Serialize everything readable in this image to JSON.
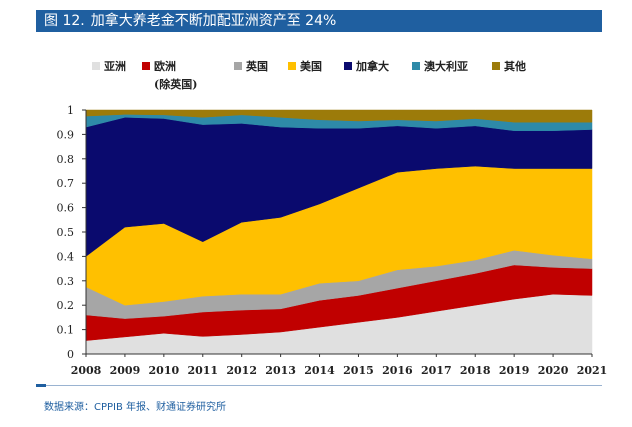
{
  "header": {
    "figure_number": "图 12.",
    "title": "加拿大养老金不断加配亚洲资产至 24%"
  },
  "chart_data": {
    "type": "area",
    "stacked": true,
    "categories": [
      "2008",
      "2009",
      "2010",
      "2011",
      "2012",
      "2013",
      "2014",
      "2015",
      "2016",
      "2017",
      "2018",
      "2019",
      "2020",
      "2021"
    ],
    "ylim": [
      0,
      1
    ],
    "yticks": [
      "0",
      "0.1",
      "0.2",
      "0.3",
      "0.4",
      "0.5",
      "0.6",
      "0.7",
      "0.8",
      "0.9",
      "1"
    ],
    "legend_position": "top",
    "series": [
      {
        "name": "亚洲",
        "color": "#e0e0e0",
        "values": [
          0.055,
          0.07,
          0.085,
          0.072,
          0.08,
          0.09,
          0.11,
          0.13,
          0.15,
          0.175,
          0.2,
          0.225,
          0.245,
          0.24
        ]
      },
      {
        "name": "欧洲(除英国)",
        "color": "#c00000",
        "values": [
          0.105,
          0.075,
          0.07,
          0.1,
          0.1,
          0.095,
          0.11,
          0.11,
          0.12,
          0.125,
          0.13,
          0.14,
          0.11,
          0.11
        ]
      },
      {
        "name": "英国",
        "color": "#a6a6a6",
        "values": [
          0.115,
          0.055,
          0.06,
          0.065,
          0.065,
          0.06,
          0.07,
          0.06,
          0.075,
          0.06,
          0.055,
          0.06,
          0.05,
          0.04
        ]
      },
      {
        "name": "美国",
        "color": "#ffc000",
        "values": [
          0.125,
          0.32,
          0.32,
          0.223,
          0.295,
          0.315,
          0.325,
          0.38,
          0.4,
          0.4,
          0.385,
          0.335,
          0.355,
          0.37
        ]
      },
      {
        "name": "加拿大",
        "color": "#0a0a6e",
        "values": [
          0.53,
          0.45,
          0.43,
          0.48,
          0.405,
          0.37,
          0.31,
          0.245,
          0.19,
          0.165,
          0.165,
          0.155,
          0.155,
          0.16
        ]
      },
      {
        "name": "澳大利亚",
        "color": "#2e8aa8",
        "values": [
          0.045,
          0.012,
          0.015,
          0.03,
          0.035,
          0.04,
          0.035,
          0.03,
          0.025,
          0.03,
          0.03,
          0.035,
          0.035,
          0.03
        ]
      },
      {
        "name": "其他",
        "color": "#9c7b0a",
        "values": [
          0.025,
          0.018,
          0.02,
          0.03,
          0.02,
          0.03,
          0.04,
          0.045,
          0.04,
          0.045,
          0.035,
          0.05,
          0.05,
          0.05
        ]
      }
    ]
  },
  "legend": {
    "items": [
      {
        "label": "亚洲",
        "color": "#e0e0e0"
      },
      {
        "label": "欧洲",
        "label2": "(除英国)",
        "color": "#c00000"
      },
      {
        "label": "英国",
        "color": "#a6a6a6"
      },
      {
        "label": "美国",
        "color": "#ffc000"
      },
      {
        "label": "加拿大",
        "color": "#0a0a6e"
      },
      {
        "label": "澳大利亚",
        "color": "#2e8aa8"
      },
      {
        "label": "其他",
        "color": "#9c7b0a"
      }
    ]
  },
  "footer": {
    "source": "数据来源：CPPIB 年报、财通证券研究所"
  }
}
